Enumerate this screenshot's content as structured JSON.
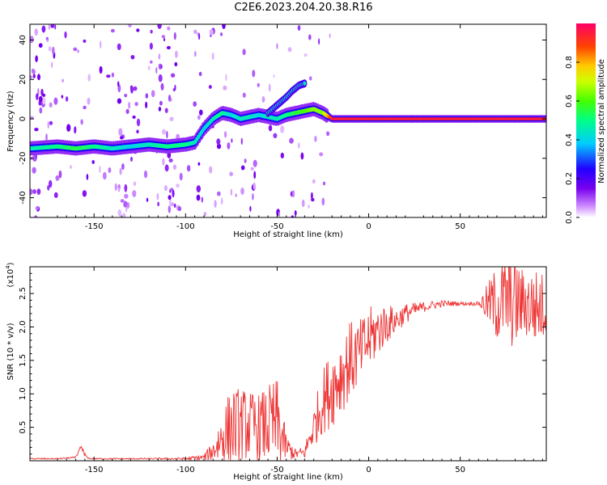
{
  "title": "C2E6.2023.204.20.38.R16",
  "chart_data": [
    {
      "type": "heatmap",
      "xlabel": "Height of straight line (km)",
      "ylabel": "Frequency (Hz)",
      "xlim": [
        -185,
        97
      ],
      "ylim": [
        -50,
        48
      ],
      "xticks": [
        -150,
        -100,
        -50,
        0,
        50
      ],
      "yticks": [
        -40,
        -20,
        0,
        20,
        40
      ],
      "colorbar": {
        "label": "Normalized spectral amplitude",
        "range": [
          0,
          1
        ],
        "ticks": [
          "0.0",
          "0.2",
          "0.4",
          "0.6",
          "0.8"
        ]
      },
      "ridge": {
        "x": [
          -185,
          -170,
          -160,
          -150,
          -140,
          -130,
          -120,
          -110,
          -100,
          -95,
          -90,
          -85,
          -80,
          -75,
          -70,
          -65,
          -60,
          -55,
          -50,
          -45,
          -40,
          -35,
          -30,
          -25,
          -20,
          -10,
          0,
          10,
          20,
          50,
          70,
          97
        ],
        "freq": [
          -15,
          -14,
          -15,
          -14,
          -15,
          -14,
          -13,
          -14,
          -13,
          -12,
          -5,
          0,
          3,
          2,
          0,
          1,
          2,
          1,
          0,
          2,
          3,
          4,
          5,
          3,
          0,
          0,
          0,
          0,
          0,
          0,
          0,
          0
        ],
        "amplitude": [
          0.45,
          0.5,
          0.55,
          0.5,
          0.45,
          0.4,
          0.45,
          0.5,
          0.5,
          0.45,
          0.4,
          0.45,
          0.5,
          0.4,
          0.45,
          0.45,
          0.4,
          0.45,
          0.45,
          0.5,
          0.55,
          0.6,
          0.65,
          0.65,
          0.95,
          0.95,
          0.95,
          0.95,
          0.95,
          0.95,
          0.95,
          0.95
        ]
      },
      "branch": {
        "x": [
          -55,
          -50,
          -45,
          -42,
          -38,
          -35
        ],
        "freq": [
          3,
          7,
          11,
          14,
          17,
          18
        ]
      }
    },
    {
      "type": "line",
      "xlabel": "Height of straight line (km)",
      "ylabel": "SNR (10 * v/v)",
      "scale_label": "(x10",
      "scale_exp": "4",
      "scale_close": ")",
      "xlim": [
        -185,
        97
      ],
      "ylim": [
        0,
        2.9
      ],
      "xticks": [
        -150,
        -100,
        -50,
        0,
        50
      ],
      "yticks": [
        0.5,
        1.0,
        1.5,
        2.0,
        2.5
      ],
      "color": "#ee3333",
      "envelope": {
        "x": [
          -185,
          -170,
          -160,
          -150,
          -140,
          -120,
          -100,
          -90,
          -85,
          -80,
          -75,
          -70,
          -60,
          -50,
          -45,
          -40,
          -35,
          -30,
          -25,
          -20,
          -15,
          -10,
          -5,
          0,
          5,
          10,
          15,
          20,
          30,
          40,
          50,
          60,
          70,
          75,
          80,
          85,
          90,
          97
        ],
        "y": [
          0.03,
          0.03,
          0.05,
          0.03,
          0.03,
          0.03,
          0.03,
          0.05,
          0.15,
          0.35,
          0.5,
          0.55,
          0.5,
          0.55,
          0.2,
          0.1,
          0.12,
          0.5,
          0.9,
          1.1,
          1.3,
          1.5,
          1.6,
          1.8,
          1.95,
          2.05,
          2.1,
          2.2,
          2.3,
          2.35,
          2.35,
          2.35,
          2.35,
          2.4,
          2.35,
          2.35,
          2.3,
          2.3
        ],
        "noise": [
          0.01,
          0.01,
          0.01,
          0.01,
          0.01,
          0.01,
          0.02,
          0.05,
          0.15,
          0.45,
          0.6,
          0.55,
          0.5,
          0.7,
          0.2,
          0.08,
          0.1,
          0.3,
          0.5,
          0.6,
          0.6,
          0.6,
          0.5,
          0.5,
          0.4,
          0.3,
          0.2,
          0.15,
          0.08,
          0.05,
          0.03,
          0.03,
          0.6,
          0.7,
          0.7,
          0.5,
          0.6,
          0.5
        ]
      },
      "bumps": {
        "x": [
          -160,
          -155
        ],
        "y": [
          0.2,
          0.25
        ]
      }
    }
  ]
}
